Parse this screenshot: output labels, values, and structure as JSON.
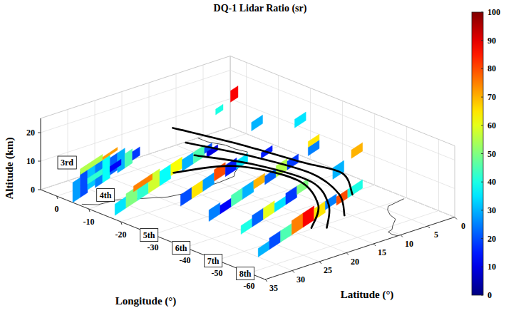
{
  "chart_data": {
    "type": "curtain3d",
    "title": "DQ-1 Lidar Ratio (sr)",
    "xlabel": "Longitude (°)",
    "ylabel": "Latitude (°)",
    "zlabel": "Altitude (km)",
    "xlim": [
      -65,
      5
    ],
    "xticks": [
      0,
      -10,
      -20,
      -30,
      -40,
      -50,
      -60
    ],
    "ylim": [
      0,
      35
    ],
    "yticks": [
      0,
      5,
      10,
      15,
      20,
      25,
      30,
      35
    ],
    "zlim": [
      0,
      25
    ],
    "zticks": [
      0,
      10,
      20
    ],
    "grid": true,
    "colorbar_lim": [
      0,
      100
    ],
    "colorbar_ticks": [
      0,
      10,
      20,
      30,
      40,
      50,
      60,
      70,
      80,
      90,
      100
    ],
    "tracks": [
      {
        "label": "3rd",
        "lon": [
          -5,
          5
        ],
        "lat": [
          35,
          16
        ],
        "segments": [
          {
            "lat": [
              35,
              33
            ],
            "alt": [
              0,
              7
            ],
            "value": 28
          },
          {
            "lat": [
              33,
              31
            ],
            "alt": [
              0,
              9
            ],
            "value": 20
          },
          {
            "lat": [
              31,
              29
            ],
            "alt": [
              1,
              9
            ],
            "value": 32
          },
          {
            "lat": [
              29,
              27
            ],
            "alt": [
              0,
              8
            ],
            "value": 25
          },
          {
            "lat": [
              27,
              25
            ],
            "alt": [
              0,
              8
            ],
            "value": 38
          },
          {
            "lat": [
              25,
              23
            ],
            "alt": [
              1,
              7
            ],
            "value": 22
          },
          {
            "lat": [
              23,
              21
            ],
            "alt": [
              0,
              7
            ],
            "value": 30
          },
          {
            "lat": [
              21,
              19
            ],
            "alt": [
              0,
              5
            ],
            "value": 45
          },
          {
            "lat": [
              19,
              17
            ],
            "alt": [
              1,
              4
            ],
            "value": 18
          },
          {
            "lat": [
              31,
              27
            ],
            "alt": [
              3,
              5
            ],
            "value": 42
          },
          {
            "lat": [
              25,
              22
            ],
            "alt": [
              2,
              4
            ],
            "value": 12
          },
          {
            "lat": [
              33,
              27
            ],
            "alt": [
              8,
              10
            ],
            "value": 55
          },
          {
            "lat": [
              27,
              23
            ],
            "alt": [
              8,
              9
            ],
            "value": 72
          }
        ]
      },
      {
        "label": "4th",
        "lon": [
          -17,
          1.4
        ],
        "lat": [
          35,
          0
        ],
        "segments": [
          {
            "lat": [
              34,
              31
            ],
            "alt": [
              0,
              4
            ],
            "value": 35
          },
          {
            "lat": [
              31,
              28
            ],
            "alt": [
              0,
              5
            ],
            "value": 50
          },
          {
            "lat": [
              28,
              25
            ],
            "alt": [
              0,
              5
            ],
            "value": 42
          },
          {
            "lat": [
              25,
              22
            ],
            "alt": [
              0,
              6
            ],
            "value": 58
          },
          {
            "lat": [
              22,
              19
            ],
            "alt": [
              0,
              5
            ],
            "value": 38
          },
          {
            "lat": [
              19,
              16
            ],
            "alt": [
              1,
              5
            ],
            "value": 62
          },
          {
            "lat": [
              16,
              13
            ],
            "alt": [
              0,
              4
            ],
            "value": 30
          },
          {
            "lat": [
              13,
              10
            ],
            "alt": [
              0,
              4
            ],
            "value": 45
          },
          {
            "lat": [
              10,
              8
            ],
            "alt": [
              1,
              3
            ],
            "value": 20
          },
          {
            "lat": [
              29,
              24
            ],
            "alt": [
              4,
              6
            ],
            "value": 75
          },
          {
            "lat": [
              7,
              5
            ],
            "alt": [
              12,
              14
            ],
            "value": 40
          },
          {
            "lat": [
              3,
              1
            ],
            "alt": [
              13,
              17
            ],
            "value": 88
          }
        ]
      },
      {
        "label": "5th",
        "lon": [
          -27,
          -8.6
        ],
        "lat": [
          35,
          0
        ],
        "segments": [
          {
            "lat": [
              25,
              22
            ],
            "alt": [
              0,
              4
            ],
            "value": 20
          },
          {
            "lat": [
              22,
              19
            ],
            "alt": [
              0,
              4
            ],
            "value": 65
          },
          {
            "lat": [
              19,
              16
            ],
            "alt": [
              0,
              4
            ],
            "value": 28
          },
          {
            "lat": [
              16,
              13
            ],
            "alt": [
              1,
              5
            ],
            "value": 80
          },
          {
            "lat": [
              13,
              10
            ],
            "alt": [
              0,
              4
            ],
            "value": 15
          },
          {
            "lat": [
              10,
              7
            ],
            "alt": [
              0,
              3
            ],
            "value": 35
          },
          {
            "lat": [
              18,
              15
            ],
            "alt": [
              11,
              13
            ],
            "value": 10
          },
          {
            "lat": [
              6,
              3
            ],
            "alt": [
              10,
              13
            ],
            "value": 30
          }
        ]
      },
      {
        "label": "6th",
        "lon": [
          -37,
          -18.6
        ],
        "lat": [
          35,
          0
        ],
        "segments": [
          {
            "lat": [
              26,
              23
            ],
            "alt": [
              0,
              4
            ],
            "value": 25
          },
          {
            "lat": [
              23,
              20
            ],
            "alt": [
              0,
              3
            ],
            "value": 12
          },
          {
            "lat": [
              20,
              17
            ],
            "alt": [
              0,
              4
            ],
            "value": 45
          },
          {
            "lat": [
              17,
              14
            ],
            "alt": [
              0,
              4
            ],
            "value": 30
          },
          {
            "lat": [
              14,
              11
            ],
            "alt": [
              1,
              4
            ],
            "value": 70
          },
          {
            "lat": [
              11,
              8
            ],
            "alt": [
              0,
              3
            ],
            "value": 22
          },
          {
            "lat": [
              8,
              5
            ],
            "alt": [
              0,
              4
            ],
            "value": 55
          },
          {
            "lat": [
              5,
              2
            ],
            "alt": [
              0,
              3
            ],
            "value": 18
          },
          {
            "lat": [
              12,
              9
            ],
            "alt": [
              10,
              12
            ],
            "value": 15
          },
          {
            "lat": [
              3,
              0
            ],
            "alt": [
              13,
              16
            ],
            "value": 35
          }
        ]
      },
      {
        "label": "7th",
        "lon": [
          -47,
          -28.6
        ],
        "lat": [
          35,
          0
        ],
        "segments": [
          {
            "lat": [
              26,
              23
            ],
            "alt": [
              0,
              3
            ],
            "value": 40
          },
          {
            "lat": [
              23,
              20
            ],
            "alt": [
              0,
              4
            ],
            "value": 22
          },
          {
            "lat": [
              20,
              17
            ],
            "alt": [
              0,
              4
            ],
            "value": 60
          },
          {
            "lat": [
              17,
              14
            ],
            "alt": [
              0,
              3
            ],
            "value": 35
          },
          {
            "lat": [
              14,
              11
            ],
            "alt": [
              0,
              4
            ],
            "value": 18
          },
          {
            "lat": [
              11,
              8
            ],
            "alt": [
              1,
              4
            ],
            "value": 50
          },
          {
            "lat": [
              8,
              5
            ],
            "alt": [
              12,
              15
            ],
            "value": 25
          },
          {
            "lat": [
              8,
              5
            ],
            "alt": [
              15,
              17
            ],
            "value": 65
          }
        ]
      },
      {
        "label": "8th",
        "lon": [
          -57,
          -38.6
        ],
        "lat": [
          35,
          0
        ],
        "segments": [
          {
            "lat": [
              30,
              27
            ],
            "alt": [
              0,
              3
            ],
            "value": 30
          },
          {
            "lat": [
              27,
              24
            ],
            "alt": [
              0,
              4
            ],
            "value": 20
          },
          {
            "lat": [
              24,
              21
            ],
            "alt": [
              0,
              4
            ],
            "value": 45
          },
          {
            "lat": [
              21,
              18
            ],
            "alt": [
              0,
              5
            ],
            "value": 75
          },
          {
            "lat": [
              18,
              15
            ],
            "alt": [
              0,
              5
            ],
            "value": 88
          },
          {
            "lat": [
              15,
              12
            ],
            "alt": [
              0,
              4
            ],
            "value": 65
          },
          {
            "lat": [
              12,
              9
            ],
            "alt": [
              1,
              4
            ],
            "value": 25
          },
          {
            "lat": [
              9,
              6
            ],
            "alt": [
              0,
              3
            ],
            "value": 80
          },
          {
            "lat": [
              6,
              2
            ],
            "alt": [
              0,
              3
            ],
            "value": 40
          },
          {
            "lat": [
              10,
              7
            ],
            "alt": [
              10,
              14
            ],
            "value": 30
          },
          {
            "lat": [
              5,
              2
            ],
            "alt": [
              13,
              16
            ],
            "value": 70
          }
        ]
      }
    ],
    "trajectories": [
      {
        "lon": [
          0.6,
          -15.1,
          -30.2,
          -37.7,
          -44.6
        ],
        "lat": [
          13.2,
          9.8,
          7.3,
          4.6,
          6.8
        ],
        "alt": [
          10,
          9,
          8,
          6,
          3
        ]
      },
      {
        "lon": [
          -6.3,
          -19.3,
          -34.5,
          -45,
          -52.4
        ],
        "lat": [
          14.9,
          11.1,
          8.5,
          9.5,
          12.9
        ],
        "alt": [
          9,
          8,
          7,
          5,
          3
        ]
      },
      {
        "lon": [
          -11.7,
          -23,
          -36.9,
          -46.8,
          -54
        ],
        "lat": [
          16.5,
          12,
          9.9,
          12.5,
          17.1
        ],
        "alt": [
          8,
          7,
          6,
          4,
          2
        ]
      },
      {
        "lon": [
          -15,
          -20.7,
          -34.3,
          -45.4,
          -51.9
        ],
        "lat": [
          22.3,
          14.4,
          10.9,
          13.6,
          18.7
        ],
        "alt": [
          7,
          7,
          6,
          4,
          2
        ]
      }
    ],
    "coastlines": [
      {
        "lon": [
          5,
          2,
          -2,
          -5,
          -8,
          -11,
          -13,
          -15,
          -16.5,
          -17,
          -17,
          -16,
          -13,
          -10,
          -9.5,
          -7
        ],
        "lat": [
          6,
          6,
          5,
          5,
          4.5,
          7,
          9,
          11,
          12,
          15,
          21,
          24,
          27,
          30,
          33,
          34.5
        ]
      },
      {
        "lon": [
          -50,
          -51,
          -52.5,
          -55,
          -57.5,
          -60,
          -61.5,
          -62,
          -63.5,
          -65
        ],
        "lat": [
          0.5,
          4,
          5,
          6,
          6.5,
          8.5,
          9.5,
          10.5,
          10.7,
          10.5
        ]
      }
    ]
  }
}
